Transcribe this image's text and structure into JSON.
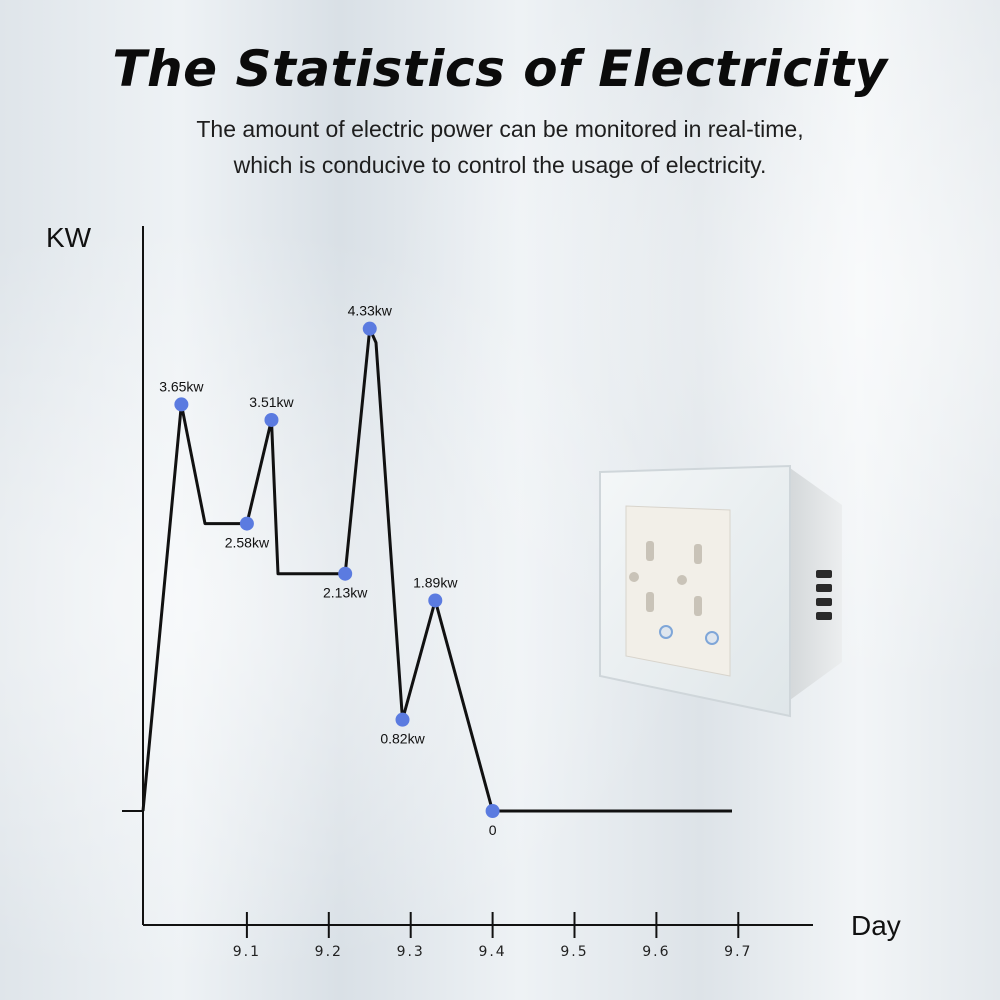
{
  "header": {
    "title": "The Statistics of Electricity",
    "subtitle_line1": "The amount of electric power can be monitored in real-time,",
    "subtitle_line2": "which is conducive to control the usage of electricity."
  },
  "chart_data": {
    "type": "line",
    "xlabel": "Day",
    "ylabel": "KW",
    "x_ticks": [
      "9.1",
      "9.2",
      "9.3",
      "9.4",
      "9.5",
      "9.6",
      "9.7"
    ],
    "series": [
      {
        "color": "#5b7be0",
        "points": [
          {
            "x": 9.02,
            "y": 3.65,
            "label": "3.65kw",
            "label_pos": "above"
          },
          {
            "x": 9.1,
            "y": 2.58,
            "label": "2.58kw",
            "label_pos": "below"
          },
          {
            "x": 9.13,
            "y": 3.51,
            "label": "3.51kw",
            "label_pos": "above"
          },
          {
            "x": 9.22,
            "y": 2.13,
            "label": "2.13kw",
            "label_pos": "below"
          },
          {
            "x": 9.25,
            "y": 4.33,
            "label": "4.33kw",
            "label_pos": "above"
          },
          {
            "x": 9.29,
            "y": 0.82,
            "label": "0.82kw",
            "label_pos": "below"
          },
          {
            "x": 9.33,
            "y": 1.89,
            "label": "1.89kw",
            "label_pos": "above"
          },
          {
            "x": 9.4,
            "y": 0,
            "label": "0",
            "label_pos": "below"
          }
        ]
      }
    ],
    "xlim": [
      9.0,
      9.7
    ],
    "ylim": [
      0,
      4.33
    ],
    "grid": false,
    "legend": "none"
  }
}
